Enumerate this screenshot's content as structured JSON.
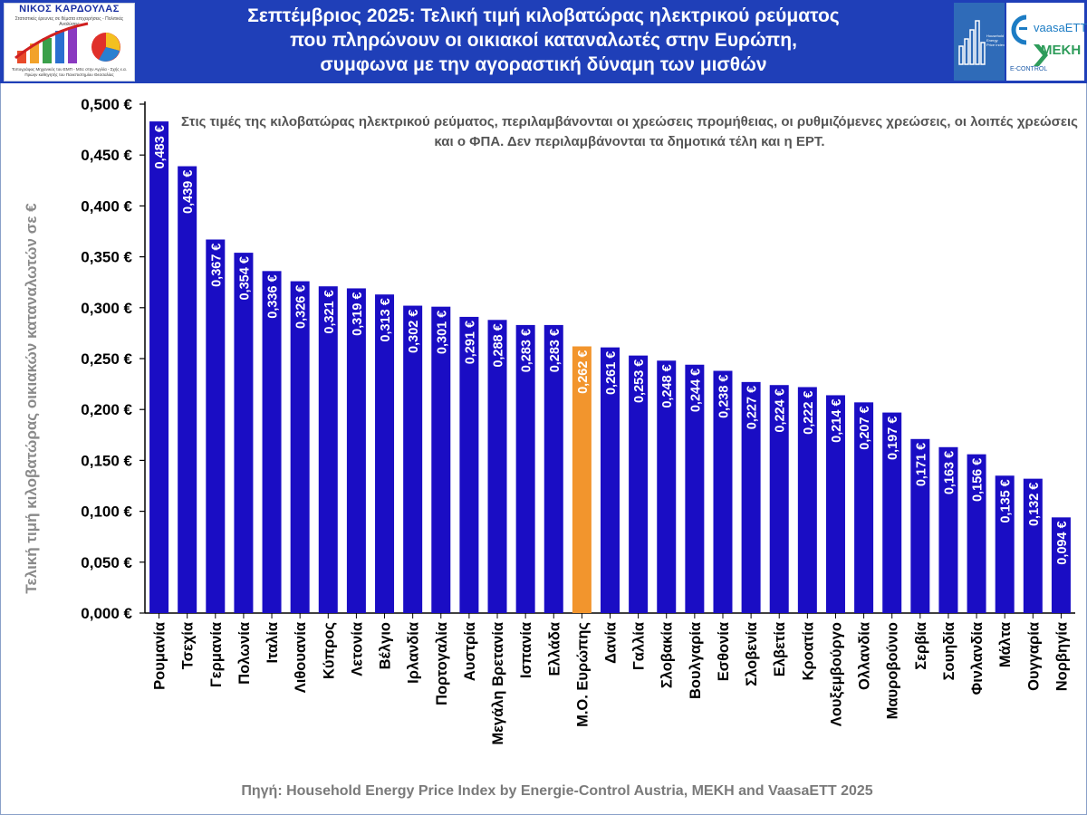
{
  "header": {
    "title": "Σεπτέμβριος 2025: Τελική τιμή κιλοβατώρας ηλεκτρικού ρεύματος\nπου  πληρώνουν  οι  οικιακοί  καταναλωτές στην Ευρώπη,\nσυμφωνα με την αγοραστική δύναμη των μισθών",
    "logo_brand": "ΝΙΚΟΣ ΚΑΡΔΟΥΛΑΣ",
    "logo_tagline": "Στατιστικές έρευνες σε θέματα επιχειρήσεις - Πολιτικές Αναλύσεις",
    "logo_footer_1": "Τοπογράφος Μηχανικός του ΕΜΠ - MSc στην Αγγλία - Σχής ε.α.",
    "logo_footer_2": "Πρώην καθηγητής του Πανεπιστημίου Θεσσαλίας",
    "partner_1": "vaasaETT",
    "partner_2": "MEKH",
    "partner_3": "E-CONTROL",
    "hepi_label": "Household Energy Price Index"
  },
  "chart_data": {
    "type": "bar",
    "title": "Σεπτέμβριος 2025: Τελική τιμή κιλοβατώρας ηλεκτρικού ρεύματος που πληρώνουν οι οικιακοί καταναλωτές στην Ευρώπη, συμφωνα με την αγοραστική δύναμη των μισθών",
    "ylabel": "Τελική τιμή κιλοβατώρας οικιακών καταναλωτών σε €",
    "xlabel": "",
    "ylim": [
      0,
      0.5
    ],
    "yticks": [
      "0,000 €",
      "0,050 €",
      "0,100 €",
      "0,150 €",
      "0,200 €",
      "0,250 €",
      "0,300 €",
      "0,350 €",
      "0,400 €",
      "0,450 €",
      "0,500 €"
    ],
    "grid": false,
    "categories": [
      "Ρουμανία",
      "Τσεχία",
      "Γερμανία",
      "Πολωνία",
      "Ιταλία",
      "Λιθουανία",
      "Κύπρος",
      "Λετονία",
      "Βέλγιο",
      "Ιρλανδία",
      "Πορτογαλία",
      "Αυστρία",
      "Μεγάλη Βρετανία",
      "Ισπανία",
      "Ελλάδα",
      "Μ.Ο. Ευρώπης",
      "Δανία",
      "Γαλλία",
      "Σλοβακία",
      "Βουλγαρία",
      "Εσθονία",
      "Σλοβενία",
      "Ελβετία",
      "Κροατία",
      "Λουξεμβούργο",
      "Ολλανδία",
      "Μαυροβούνιο",
      "Σερβία",
      "Σουηδία",
      "Φινλανδία",
      "Μάλτα",
      "Ουγγαρία",
      "Νορβηγία"
    ],
    "values": [
      0.483,
      0.439,
      0.367,
      0.354,
      0.336,
      0.326,
      0.321,
      0.319,
      0.313,
      0.302,
      0.301,
      0.291,
      0.288,
      0.283,
      0.283,
      0.262,
      0.261,
      0.253,
      0.248,
      0.244,
      0.238,
      0.227,
      0.224,
      0.222,
      0.214,
      0.207,
      0.197,
      0.171,
      0.163,
      0.156,
      0.135,
      0.132,
      0.094
    ],
    "data_labels": [
      "0,483 €",
      "0,439 €",
      "0,367 €",
      "0,354 €",
      "0,336 €",
      "0,326 €",
      "0,321 €",
      "0,319 €",
      "0,313 €",
      "0,302 €",
      "0,301 €",
      "0,291 €",
      "0,288 €",
      "0,283 €",
      "0,283 €",
      "0,262 €",
      "0,261 €",
      "0,253 €",
      "0,248 €",
      "0,244 €",
      "0,238 €",
      "0,227 €",
      "0,224 €",
      "0,222 €",
      "0,214 €",
      "0,207 €",
      "0,197 €",
      "0,171 €",
      "0,163 €",
      "0,156 €",
      "0,135 €",
      "0,132 €",
      "0,094 €"
    ],
    "highlight_category": "Μ.Ο. Ευρώπης",
    "bar_color": "#1a0dc4",
    "highlight_color": "#f2952d",
    "annotation": "Στις τιμές της κιλοβατώρας ηλεκτρικού ρεύματος, περιλαμβάνονται οι χρεώσεις προμήθειας, οι ρυθμιζόμενες χρεώσεις, οι λοιπές χρεώσεις και ο ΦΠΑ. Δεν περιλαμβάνονται τα δημοτικά τέλη και η ΕΡΤ.",
    "source": "Πηγή: Household Energy Price Index by Energie-Control Austria, MEKH and VaasaETT 2025"
  }
}
